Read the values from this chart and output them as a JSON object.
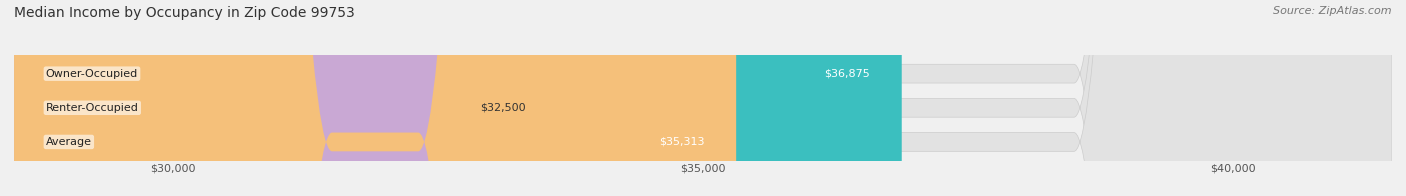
{
  "title": "Median Income by Occupancy in Zip Code 99753",
  "source": "Source: ZipAtlas.com",
  "categories": [
    "Owner-Occupied",
    "Renter-Occupied",
    "Average"
  ],
  "values": [
    36875,
    32500,
    35313
  ],
  "bar_colors": [
    "#3bbfbf",
    "#c9a8d4",
    "#f5c07a"
  ],
  "value_labels": [
    "$36,875",
    "$32,500",
    "$35,313"
  ],
  "value_label_inside": [
    true,
    false,
    true
  ],
  "x_ticks": [
    30000,
    35000,
    40000
  ],
  "x_tick_labels": [
    "$30,000",
    "$35,000",
    "$40,000"
  ],
  "xlim": [
    28500,
    41500
  ],
  "bar_height": 0.55,
  "background_color": "#f0f0f0",
  "bar_bg_color": "#e2e2e2",
  "title_fontsize": 10,
  "source_fontsize": 8,
  "label_fontsize": 8,
  "value_fontsize": 8,
  "tick_fontsize": 8
}
